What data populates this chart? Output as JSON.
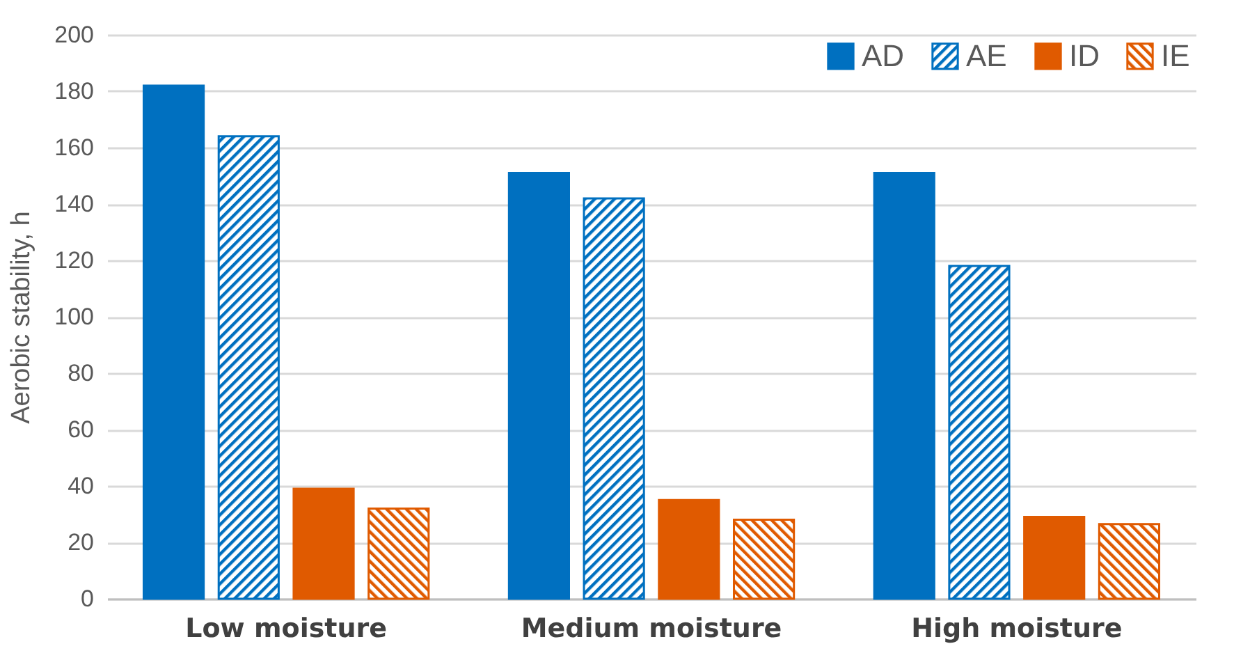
{
  "chart_data": {
    "type": "bar",
    "ylabel": "Aerobic stability, h",
    "categories": [
      "Low moisture",
      "Medium moisture",
      "High moisture"
    ],
    "series": [
      {
        "name": "AD",
        "color": "#0070c0",
        "values": [
          182,
          151,
          151
        ]
      },
      {
        "name": "AE",
        "color": "#0070c0",
        "values": [
          164,
          142,
          118
        ]
      },
      {
        "name": "ID",
        "color": "#e05a00",
        "values": [
          39,
          35,
          29
        ]
      },
      {
        "name": "IE",
        "color": "#e05a00",
        "values": [
          32,
          28,
          26.5
        ]
      }
    ],
    "ylim": [
      0,
      200
    ],
    "yticks": [
      0,
      20,
      40,
      60,
      80,
      100,
      120,
      140,
      160,
      180,
      200
    ],
    "grid": "y",
    "legend": "top right"
  }
}
